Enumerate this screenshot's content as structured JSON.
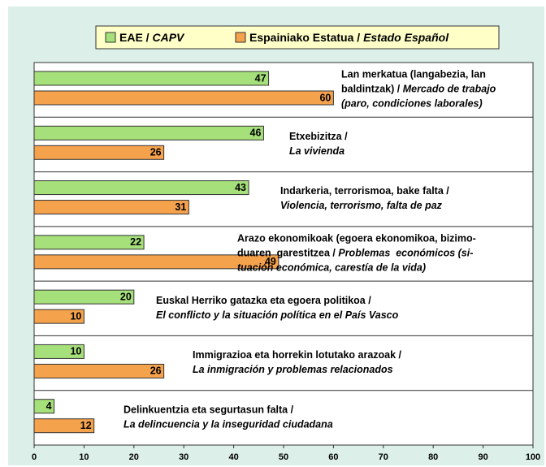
{
  "chart_data": {
    "type": "hbar",
    "categories": [
      [
        [
          {
            "text": "Lan merkatua (langabezia, lan"
          }
        ],
        [
          {
            "text": "baldintzak) / "
          },
          {
            "text": "Mercado de trabajo",
            "italic": true
          }
        ],
        [
          {
            "text": "(paro, condiciones laborales)",
            "italic": true
          }
        ]
      ],
      [
        [
          {
            "text": "Etxebizitza /"
          }
        ],
        [
          {
            "text": "La vivienda",
            "italic": true
          }
        ]
      ],
      [
        [
          {
            "text": "Indarkeria, terrorismoa, bake falta /"
          }
        ],
        [
          {
            "text": "Violencia, terrorismo, falta de paz",
            "italic": true
          }
        ]
      ],
      [
        [
          {
            "text": "Arazo ekonomikoak (egoera ekonomikoa, bizimo-"
          }
        ],
        [
          {
            "text": "duaren  garestitzea / "
          },
          {
            "text": "Problemas  económicos (si-",
            "italic": true
          }
        ],
        [
          {
            "text": "tuación económica, carestía de la vida)",
            "italic": true
          }
        ]
      ],
      [
        [
          {
            "text": "Euskal Herriko gatazka eta egoera politikoa /"
          }
        ],
        [
          {
            "text": "El conflicto y la situación política en el País Vasco",
            "italic": true
          }
        ]
      ],
      [
        [
          {
            "text": "Immigrazioa eta horrekin lotutako arazoak /"
          }
        ],
        [
          {
            "text": "La inmigración y problemas relacionados",
            "italic": true
          }
        ]
      ],
      [
        [
          {
            "text": "Delinkuentzia eta segurtasun falta /"
          }
        ],
        [
          {
            "text": "La delincuencia y la inseguridad ciudadana",
            "italic": true
          }
        ]
      ]
    ],
    "series": [
      {
        "name": [
          {
            "text": "EAE / "
          },
          {
            "text": "CAPV",
            "italic": true
          }
        ],
        "color": "#a6e07a",
        "values": [
          47,
          46,
          43,
          22,
          20,
          10,
          4
        ]
      },
      {
        "name": [
          {
            "text": "Espainiako Estatua / "
          },
          {
            "text": "Estado Español",
            "italic": true
          }
        ],
        "color": "#f5a24c",
        "values": [
          60,
          26,
          31,
          49,
          10,
          26,
          12
        ]
      }
    ],
    "xlim": [
      0,
      100
    ],
    "xticks": [
      0,
      10,
      20,
      30,
      40,
      50,
      60,
      70,
      80,
      90,
      100
    ]
  }
}
